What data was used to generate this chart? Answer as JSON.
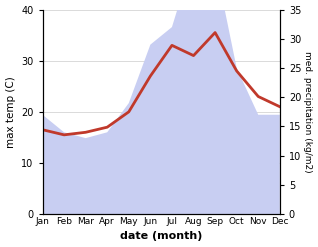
{
  "months": [
    "Jan",
    "Feb",
    "Mar",
    "Apr",
    "May",
    "Jun",
    "Jul",
    "Aug",
    "Sep",
    "Oct",
    "Nov",
    "Dec"
  ],
  "month_positions": [
    0,
    1,
    2,
    3,
    4,
    5,
    6,
    7,
    8,
    9,
    10,
    11
  ],
  "max_temp": [
    16.5,
    15.5,
    16.0,
    17.0,
    20.0,
    27.0,
    33.0,
    31.0,
    35.5,
    28.0,
    23.0,
    21.0
  ],
  "precipitation": [
    17.0,
    14.0,
    13.0,
    14.0,
    19.0,
    29.0,
    32.0,
    44.0,
    43.0,
    25.0,
    17.0,
    17.0
  ],
  "temp_ylim": [
    0,
    40
  ],
  "precip_ylim": [
    0,
    35
  ],
  "temp_color": "#c0392b",
  "precip_fill_color": "#c8cef2",
  "xlabel": "date (month)",
  "ylabel_left": "max temp (C)",
  "ylabel_right": "med. precipitation (kg/m2)",
  "bg_color": "#ffffff",
  "temp_linewidth": 2.0
}
